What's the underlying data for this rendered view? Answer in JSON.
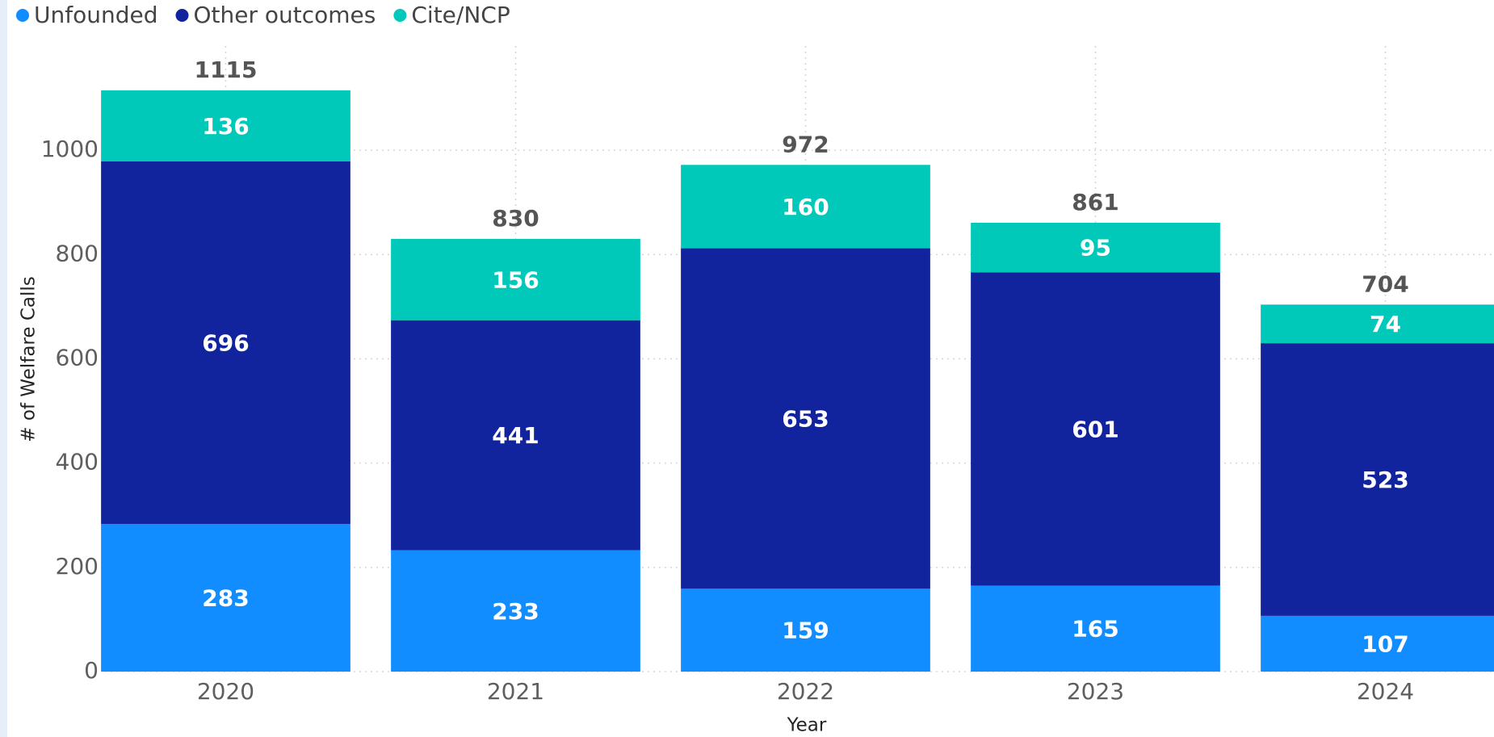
{
  "chart_data": {
    "type": "stacked_bar",
    "categories": [
      "2020",
      "2021",
      "2022",
      "2023",
      "2024"
    ],
    "series": [
      {
        "name": "Unfounded",
        "color": "#118dff",
        "values": [
          283,
          233,
          159,
          165,
          107
        ]
      },
      {
        "name": "Other outcomes",
        "color": "#12239e",
        "values": [
          696,
          441,
          653,
          601,
          523
        ]
      },
      {
        "name": "Cite/NCP",
        "color": "#00c9b9",
        "values": [
          136,
          156,
          160,
          95,
          74
        ]
      }
    ],
    "totals": [
      1115,
      830,
      972,
      861,
      704
    ],
    "x_label": "Year",
    "y_label": "# of Welfare Calls",
    "ylim": [
      0,
      1200
    ],
    "yticks": [
      0,
      200,
      400,
      600,
      800,
      1000
    ],
    "grid": true,
    "legend": "top-left"
  }
}
